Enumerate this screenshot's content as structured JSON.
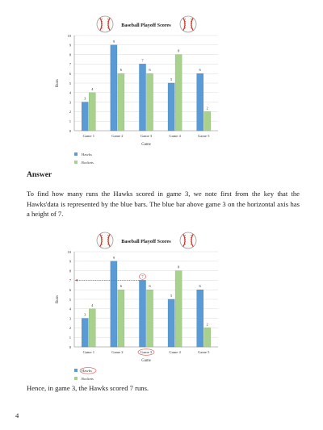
{
  "chart_data": [
    {
      "type": "bar",
      "title": "Baseball Playoff Scores",
      "xlabel": "Game",
      "ylabel": "Runs",
      "categories": [
        "Game 1",
        "Game 2",
        "Game 3",
        "Game 4",
        "Game 5"
      ],
      "series": [
        {
          "name": "Hawks",
          "values": [
            3,
            9,
            7,
            5,
            6
          ],
          "color": "#5b9bd5"
        },
        {
          "name": "Rockets",
          "values": [
            4,
            6,
            6,
            8,
            2
          ],
          "color": "#a9d18e"
        }
      ],
      "ylim": [
        0,
        10
      ],
      "yticks": [
        0,
        1,
        2,
        3,
        4,
        5,
        6,
        7,
        8,
        9,
        10
      ],
      "grid": true,
      "legend": "bottom-left",
      "decor_icon": "baseball-icon"
    },
    {
      "type": "bar",
      "title": "Baseball Playoff Scores",
      "xlabel": "Game",
      "ylabel": "Runs",
      "categories": [
        "Game 1",
        "Game 2",
        "Game 3",
        "Game 4",
        "Game 5"
      ],
      "series": [
        {
          "name": "Hawks",
          "values": [
            3,
            9,
            7,
            5,
            6
          ],
          "color": "#5b9bd5"
        },
        {
          "name": "Rockets",
          "values": [
            4,
            6,
            6,
            8,
            2
          ],
          "color": "#a9d18e"
        }
      ],
      "ylim": [
        0,
        10
      ],
      "yticks": [
        0,
        1,
        2,
        3,
        4,
        5,
        6,
        7,
        8,
        9,
        10
      ],
      "grid": true,
      "legend": "bottom-left",
      "decor_icon": "baseball-icon",
      "highlight": {
        "series": 0,
        "category": 2,
        "color": "#d9534f"
      }
    }
  ],
  "doc": {
    "answer_heading": "Answer",
    "paragraph": "To find how many runs the Hawks scored in game 3, we note first from the key that the Hawks'data is represented by the blue bars. The blue bar above game 3 on the horizontal axis has a height of 7.",
    "conclusion": "Hence, in game 3, the Hawks scored 7 runs.",
    "page_number": "4"
  }
}
